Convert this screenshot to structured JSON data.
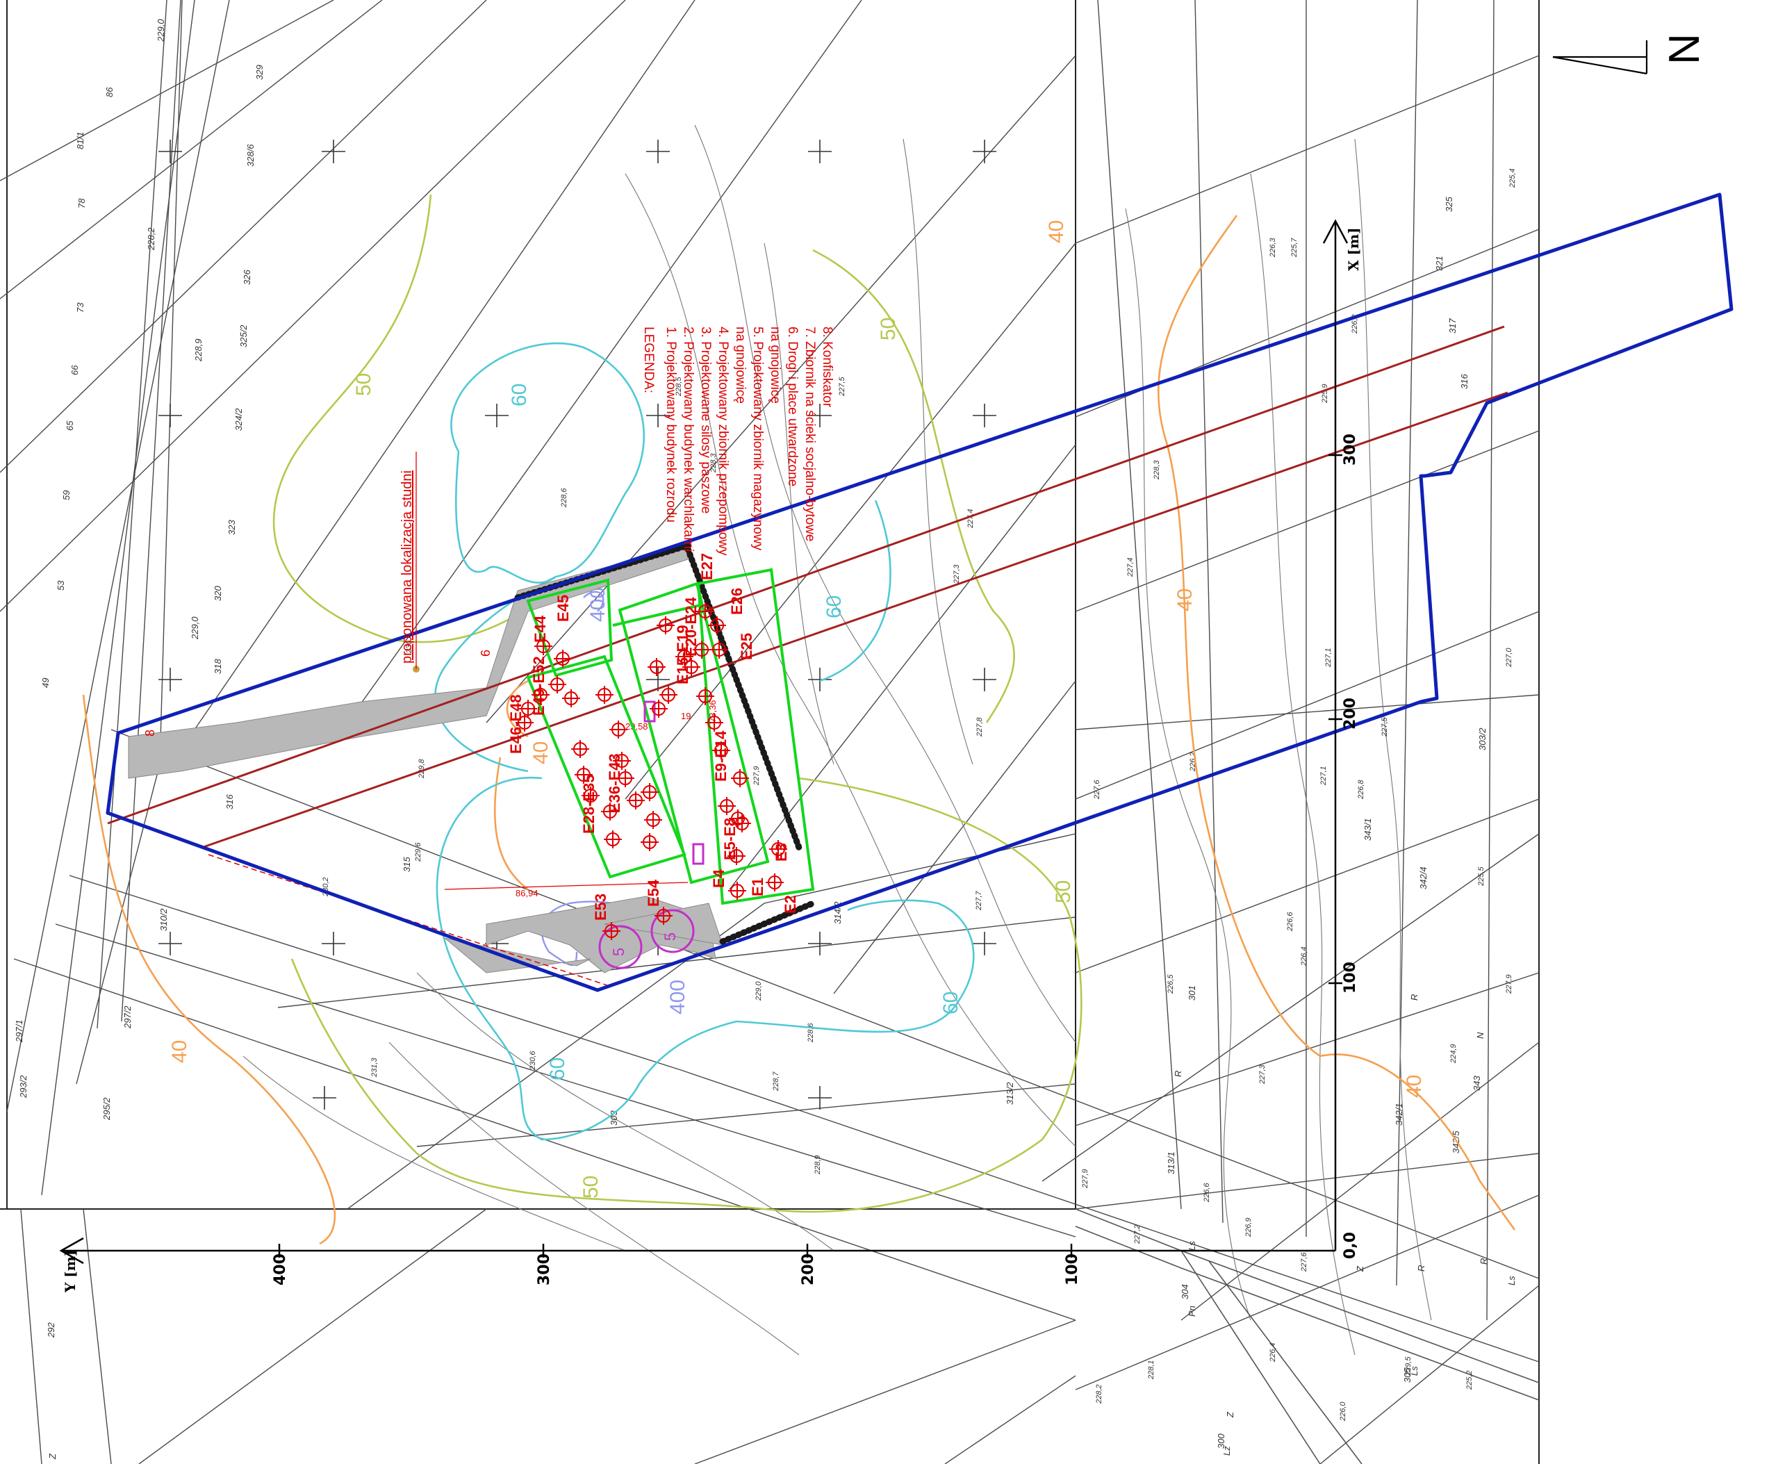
{
  "north_arrow": {
    "letter": "N"
  },
  "legend": {
    "title": "LEGENDA:",
    "items": [
      "1. Projektowany budynek rozrodu",
      "2. Projektowany budynek warchlakarni",
      "3. Projektowane silosy paszowe",
      "4. Projektowany zbiornik przepompowy",
      "na gnojowicę",
      "5. Projektowany zbiornik magazynowy",
      "na gnojowicę",
      "6. Drogi i place utwardzone",
      "7. Zbiornik na ścieki socjalno-bytowe",
      "8. Konfiskator"
    ]
  },
  "annotations": {
    "well_location": "proponowana lokalizacja studni",
    "dim_1": "86,94",
    "dim_2": "29,58",
    "dim_3": "19",
    "dim_4": "73,36",
    "area_6": "6",
    "area_8": "8",
    "tank_label": "5"
  },
  "contour_labels": {
    "c40": "40",
    "c50": "50",
    "c60": "60",
    "c400": "400"
  },
  "sources": {
    "e1": "E1",
    "e2": "E2",
    "e3": "E3",
    "e4": "E4",
    "e5_8": "E5-E8",
    "e9_14": "E9-E14",
    "e15_19": "E15-E19",
    "e20_24": "E20-E24",
    "e25": "E25",
    "e26": "E26",
    "e27": "E27",
    "e28_35": "E28-E35",
    "e36_43": "E36-E43",
    "e44": "E44",
    "e45": "E45",
    "e46_48": "E46-E48",
    "e49_52": "E49-E52",
    "e53": "E53",
    "e54": "E54"
  },
  "axes": {
    "x_name": "X [m]",
    "y_name": "Y [m]",
    "x_ticks": [
      "0,0",
      "100",
      "200",
      "300"
    ],
    "y_ticks": [
      "100",
      "200",
      "300",
      "400"
    ]
  },
  "parcels": [
    "229,0",
    "86",
    "81/1",
    "78",
    "73",
    "66",
    "65",
    "59",
    "53",
    "49",
    "228,2",
    "228,9",
    "229,0",
    "324/2",
    "323",
    "320",
    "318",
    "317",
    "316",
    "315",
    "310/2",
    "303",
    "304",
    "305",
    "300",
    "292",
    "293/2",
    "295/2",
    "297/2",
    "297/1",
    "313/2",
    "313/1",
    "314/2",
    "329",
    "328/6",
    "326",
    "325/2",
    "325",
    "321",
    "317",
    "316",
    "343/1",
    "342/4",
    "342/1",
    "342/5",
    "343",
    "R",
    "N",
    "R",
    "Pn",
    "Ls",
    "Ls",
    "Ls",
    "Lz",
    "Z",
    "Z",
    "Z",
    "R",
    "R",
    "303/2",
    "301"
  ],
  "elevations": [
    "227,4",
    "227,3",
    "227,5",
    "228,5",
    "228,3",
    "228,6",
    "229,8",
    "229,6",
    "230,4",
    "230,2",
    "231,3",
    "230,6",
    "228,7",
    "228,6",
    "227,9",
    "227,7",
    "227,8",
    "227,4",
    "226,2",
    "226,5",
    "227,6",
    "228,3",
    "227,1",
    "226,8",
    "226,6",
    "227,3",
    "225,7",
    "225,9",
    "226,4",
    "226,3",
    "226,2",
    "227,1",
    "227,5",
    "227,0",
    "227,9",
    "224,9",
    "225,5",
    "225,4",
    "225,2",
    "226,0",
    "226,4",
    "228,2",
    "228,1",
    "227,9",
    "227,2",
    "226,6",
    "226,9",
    "227,6",
    "229,0",
    "228,9",
    "229,5"
  ],
  "colors": {
    "boundary": "#0f21b5",
    "road_line": "#a52020",
    "building": "#15d61e",
    "source": "#e00000",
    "contour_40": "#f5a050",
    "contour_50": "#b5c84c",
    "contour_60": "#4fc9d6",
    "contour_400": "#8f97f0",
    "tank": "#c42ecb"
  }
}
